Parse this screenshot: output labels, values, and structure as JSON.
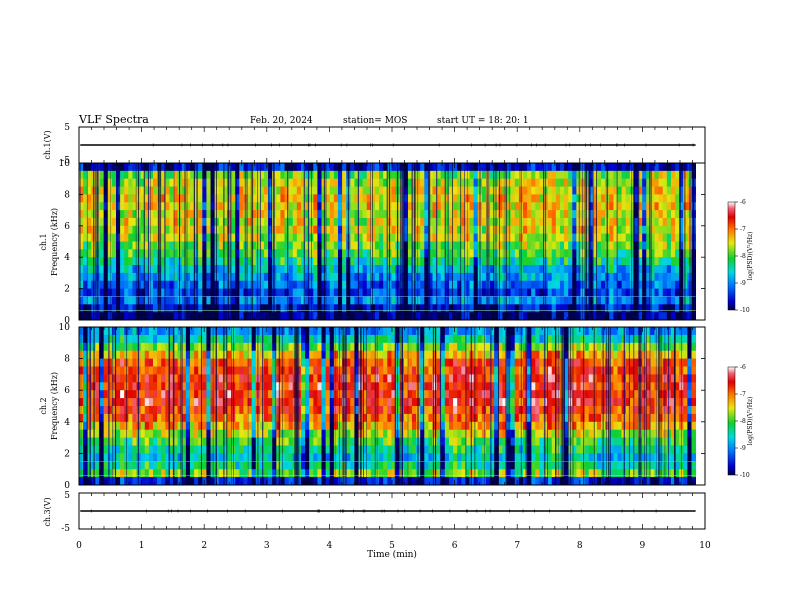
{
  "header": {
    "title": "VLF Spectra",
    "date": "Feb. 20, 2024",
    "station": "station= MOS",
    "start": "start  UT =   18: 20: 1"
  },
  "chart_data": [
    {
      "type": "line",
      "name": "ch1_voltage",
      "ylabel": "ch.1(V)",
      "ylim": [
        -5,
        5
      ],
      "yticks": [
        "5",
        "-5"
      ],
      "xlim": [
        0,
        10
      ],
      "baseline_value": 0,
      "x_end": 9.85
    },
    {
      "type": "heatmap",
      "name": "ch1_spectrogram",
      "ylabel": "ch.1\nFrequency (kHz)",
      "ylim": [
        0,
        10
      ],
      "yticks": [
        "0",
        "2",
        "4",
        "6",
        "8",
        "10"
      ],
      "xlim": [
        0,
        10
      ],
      "x_end": 9.85,
      "intensity_profile": [
        -9.9,
        -9.6,
        -9.0,
        -9.3,
        -9.1,
        -8.9,
        -8.7,
        -8.3,
        -8.0,
        -7.8,
        -7.6,
        -7.5,
        -7.5,
        -7.5,
        -7.4,
        -7.4,
        -7.5,
        -7.6,
        -7.8,
        -9.6
      ],
      "colorbar": {
        "label": "log(PSD)(V²/Hz)",
        "range": [
          -10,
          -6
        ],
        "ticks": [
          "-6",
          "-7",
          "-8",
          "-9",
          "-10"
        ]
      }
    },
    {
      "type": "heatmap",
      "name": "ch2_spectrogram",
      "ylabel": "ch.2\nFrequency (kHz)",
      "ylim": [
        0,
        10
      ],
      "yticks": [
        "0",
        "2",
        "4",
        "6",
        "8",
        "10"
      ],
      "xlim": [
        0,
        10
      ],
      "x_end": 9.85,
      "intensity_profile": [
        -9.5,
        -7.8,
        -8.3,
        -8.6,
        -8.3,
        -8.0,
        -7.6,
        -7.2,
        -6.9,
        -6.7,
        -6.6,
        -6.6,
        -6.6,
        -6.6,
        -6.7,
        -6.8,
        -7.3,
        -7.8,
        -8.4,
        -8.9
      ],
      "colorbar": {
        "label": "log(PSD)(V²/Hz)",
        "range": [
          -10,
          -6
        ],
        "ticks": [
          "-6",
          "-7",
          "-8",
          "-9",
          "-10"
        ]
      }
    },
    {
      "type": "line",
      "name": "ch3_voltage",
      "ylabel": "ch.3(V)",
      "ylim": [
        -5,
        5
      ],
      "yticks": [
        "5",
        "-5"
      ],
      "xlim": [
        0,
        10
      ],
      "baseline_value": 0,
      "x_end": 9.85
    }
  ],
  "x_axis": {
    "label": "Time (min)",
    "ticks": [
      "0",
      "1",
      "2",
      "3",
      "4",
      "5",
      "6",
      "7",
      "8",
      "9",
      "10"
    ]
  }
}
